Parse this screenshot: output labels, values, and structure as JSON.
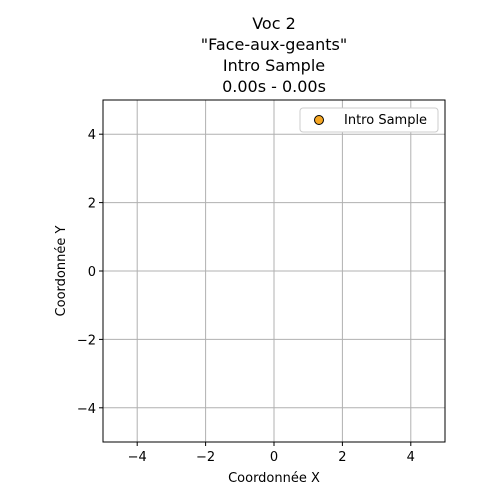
{
  "chart_data": {
    "type": "scatter",
    "title_lines": [
      "Voc 2",
      "\"Face-aux-geants\"",
      "Intro Sample",
      "0.00s - 0.00s"
    ],
    "xlabel": "Coordonnée X",
    "ylabel": "Coordonnée Y",
    "xlim": [
      -5,
      5
    ],
    "ylim": [
      -5,
      5
    ],
    "xticks": [
      -4,
      -2,
      0,
      2,
      4
    ],
    "yticks": [
      -4,
      -2,
      0,
      2,
      4
    ],
    "xtick_labels": [
      "−4",
      "−2",
      "0",
      "2",
      "4"
    ],
    "ytick_labels": [
      "−4",
      "−2",
      "0",
      "2",
      "4"
    ],
    "grid": true,
    "legend_position": "top-right",
    "series": [
      {
        "name": "Intro Sample",
        "color": "#f5a623",
        "edgecolor": "#000000",
        "points": []
      }
    ]
  }
}
